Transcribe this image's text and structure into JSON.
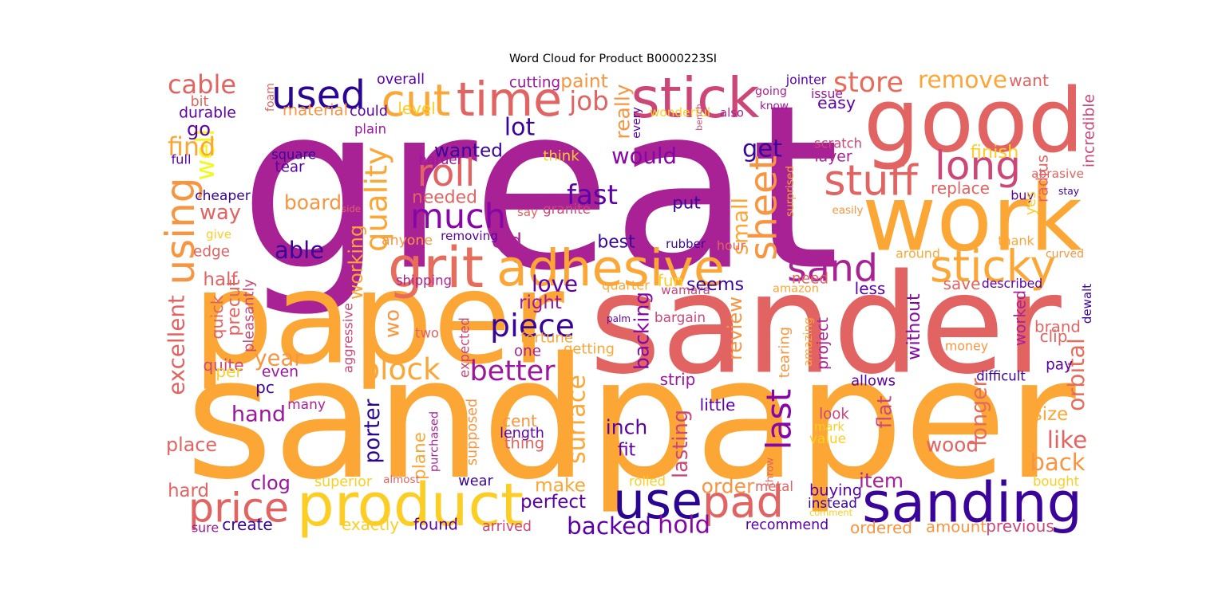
{
  "chart_data": {
    "type": "wordcloud",
    "title": "Word Cloud for Product B0000223SI",
    "colormap": "plasma",
    "words": [
      {
        "text": "great",
        "color": "#a82296"
      },
      {
        "text": "sandpaper",
        "color": "#fca636"
      },
      {
        "text": "sander",
        "color": "#e16462"
      },
      {
        "text": "paper",
        "color": "#fca636"
      },
      {
        "text": "good",
        "color": "#e16462"
      },
      {
        "text": "work",
        "color": "#fca636"
      },
      {
        "text": "sanding",
        "color": "#3a049a"
      },
      {
        "text": "product",
        "color": "#fcce25"
      },
      {
        "text": "use",
        "color": "#2a0593"
      },
      {
        "text": "adhesive",
        "color": "#fca636"
      },
      {
        "text": "time",
        "color": "#e16462"
      },
      {
        "text": "stick",
        "color": "#cc4778"
      },
      {
        "text": "grit",
        "color": "#e66c5c"
      },
      {
        "text": "much",
        "color": "#8606a6"
      },
      {
        "text": "used",
        "color": "#2a0593"
      },
      {
        "text": "roll",
        "color": "#e16462"
      },
      {
        "text": "cut",
        "color": "#fca636"
      },
      {
        "text": "well",
        "color": "#f0f921"
      },
      {
        "text": "price",
        "color": "#e16462"
      },
      {
        "text": "pad",
        "color": "#e16462"
      },
      {
        "text": "sticky",
        "color": "#fca636"
      },
      {
        "text": "sand",
        "color": "#a82296"
      },
      {
        "text": "long",
        "color": "#cc4778"
      },
      {
        "text": "stuff",
        "color": "#e16462"
      },
      {
        "text": "sheet",
        "color": "#f89540"
      },
      {
        "text": "using",
        "color": "#f89540"
      },
      {
        "text": "last",
        "color": "#8606a6"
      },
      {
        "text": "piece",
        "color": "#3a049a"
      },
      {
        "text": "remove",
        "color": "#fca636"
      },
      {
        "text": "store",
        "color": "#e66c5c"
      },
      {
        "text": "quality",
        "color": "#fca636"
      },
      {
        "text": "cable",
        "color": "#e16462"
      },
      {
        "text": "would",
        "color": "#8606a6"
      },
      {
        "text": "fast",
        "color": "#5c01a6"
      },
      {
        "text": "able",
        "color": "#3a049a"
      },
      {
        "text": "board",
        "color": "#f89540"
      },
      {
        "text": "block",
        "color": "#fca636"
      },
      {
        "text": "backed",
        "color": "#5c01a6"
      },
      {
        "text": "year",
        "color": "#f89540"
      },
      {
        "text": "one",
        "color": "#a82296"
      },
      {
        "text": "better",
        "color": "#9c179e"
      },
      {
        "text": "need",
        "color": "#e16462"
      },
      {
        "text": "get",
        "color": "#3a049a"
      },
      {
        "text": "small",
        "color": "#fca636"
      },
      {
        "text": "buy",
        "color": "#5c01a6"
      },
      {
        "text": "worked",
        "color": "#a82296"
      },
      {
        "text": "like",
        "color": "#e16462"
      },
      {
        "text": "back",
        "color": "#f89540"
      },
      {
        "text": "longer",
        "color": "#e66c5c"
      },
      {
        "text": "orbital",
        "color": "#e66c5c"
      },
      {
        "text": "without",
        "color": "#8606a6"
      },
      {
        "text": "excellent",
        "color": "#e16462"
      },
      {
        "text": "surface",
        "color": "#fca636"
      },
      {
        "text": "review",
        "color": "#f89540"
      },
      {
        "text": "backing",
        "color": "#8606a6"
      },
      {
        "text": "porter",
        "color": "#2a0593"
      },
      {
        "text": "wood",
        "color": "#e16462"
      },
      {
        "text": "hold",
        "color": "#8606a6"
      },
      {
        "text": "make",
        "color": "#fca636"
      },
      {
        "text": "recommend",
        "color": "#5c01a6"
      },
      {
        "text": "easy",
        "color": "#5c01a6"
      },
      {
        "text": "job",
        "color": "#e16462"
      },
      {
        "text": "lot",
        "color": "#3a049a"
      },
      {
        "text": "way",
        "color": "#e16462"
      },
      {
        "text": "find",
        "color": "#fca636"
      },
      {
        "text": "go",
        "color": "#5c01a6"
      },
      {
        "text": "love",
        "color": "#5c01a6"
      },
      {
        "text": "seems",
        "color": "#3a049a"
      },
      {
        "text": "best",
        "color": "#3a049a"
      },
      {
        "text": "really",
        "color": "#f89540"
      },
      {
        "text": "wanted",
        "color": "#3a049a"
      },
      {
        "text": "needed",
        "color": "#e16462"
      },
      {
        "text": "supposed",
        "color": "#f89540"
      },
      {
        "text": "expected",
        "color": "#cc4778"
      },
      {
        "text": "hand",
        "color": "#9c179e"
      },
      {
        "text": "many",
        "color": "#a82296"
      },
      {
        "text": "place",
        "color": "#e16462"
      },
      {
        "text": "hard",
        "color": "#e16462"
      },
      {
        "text": "clog",
        "color": "#9c179e"
      },
      {
        "text": "plane",
        "color": "#fca636"
      },
      {
        "text": "inch",
        "color": "#5c01a6"
      },
      {
        "text": "perfect",
        "color": "#5c01a6"
      },
      {
        "text": "arrived",
        "color": "#cc4778"
      },
      {
        "text": "order",
        "color": "#f89540"
      },
      {
        "text": "item",
        "color": "#a82296"
      },
      {
        "text": "money",
        "color": "#f89540"
      },
      {
        "text": "brand",
        "color": "#e16462"
      },
      {
        "text": "size",
        "color": "#fca636"
      },
      {
        "text": "bought",
        "color": "#fcce25"
      },
      {
        "text": "tearing",
        "color": "#f89540"
      },
      {
        "text": "project",
        "color": "#a82296"
      },
      {
        "text": "lasting",
        "color": "#cc4778"
      },
      {
        "text": "fit",
        "color": "#5c01a6"
      },
      {
        "text": "even",
        "color": "#9c179e"
      },
      {
        "text": "half",
        "color": "#e16462"
      },
      {
        "text": "wo",
        "color": "#f89540"
      },
      {
        "text": "flat",
        "color": "#cc4778"
      },
      {
        "text": "also",
        "color": "#a82296"
      },
      {
        "text": "could",
        "color": "#5c01a6"
      },
      {
        "text": "paint",
        "color": "#f89540"
      },
      {
        "text": "cutting",
        "color": "#9c179e"
      },
      {
        "text": "overall",
        "color": "#5c01a6"
      },
      {
        "text": "foam",
        "color": "#e16462"
      },
      {
        "text": "material",
        "color": "#f89540"
      },
      {
        "text": "level",
        "color": "#fcce25"
      },
      {
        "text": "plain",
        "color": "#9c179e"
      },
      {
        "text": "wonderful",
        "color": "#fcce25"
      },
      {
        "text": "bench",
        "color": "#cc4778"
      },
      {
        "text": "every",
        "color": "#5c01a6"
      },
      {
        "text": "going",
        "color": "#a82296"
      },
      {
        "text": "know",
        "color": "#9c179e"
      },
      {
        "text": "jointer",
        "color": "#5c01a6"
      },
      {
        "text": "issue",
        "color": "#9c179e"
      },
      {
        "text": "want",
        "color": "#e16462"
      },
      {
        "text": "radius",
        "color": "#e16462"
      },
      {
        "text": "incredible",
        "color": "#cc4778"
      },
      {
        "text": "bit",
        "color": "#e16462"
      },
      {
        "text": "durable",
        "color": "#5c01a6"
      },
      {
        "text": "full",
        "color": "#5c01a6"
      },
      {
        "text": "square",
        "color": "#3a049a"
      },
      {
        "text": "tear",
        "color": "#5c01a6"
      },
      {
        "text": "cheaper",
        "color": "#3a049a"
      },
      {
        "text": "give",
        "color": "#fcce25"
      },
      {
        "text": "edge",
        "color": "#e16462"
      },
      {
        "text": "side",
        "color": "#e16462"
      },
      {
        "text": "granite",
        "color": "#cc4778"
      },
      {
        "text": "say",
        "color": "#e16462"
      },
      {
        "text": "harder",
        "color": "#9c179e"
      },
      {
        "text": "think",
        "color": "#fcce25"
      },
      {
        "text": "scratch",
        "color": "#cc4778"
      },
      {
        "text": "layer",
        "color": "#a82296"
      },
      {
        "text": "surprised",
        "color": "#fca636"
      },
      {
        "text": "finish",
        "color": "#fcce25"
      },
      {
        "text": "replace",
        "color": "#e16462"
      },
      {
        "text": "abrasive",
        "color": "#e16462"
      },
      {
        "text": "stay",
        "color": "#3a049a"
      },
      {
        "text": "easily",
        "color": "#f89540"
      },
      {
        "text": "yes",
        "color": "#fcce25"
      },
      {
        "text": "thank",
        "color": "#fca636"
      },
      {
        "text": "curved",
        "color": "#f89540"
      },
      {
        "text": "around",
        "color": "#fca636"
      },
      {
        "text": "hour",
        "color": "#e16462"
      },
      {
        "text": "put",
        "color": "#3a049a"
      },
      {
        "text": "rubber",
        "color": "#3a049a"
      },
      {
        "text": "old",
        "color": "#a82296"
      },
      {
        "text": "removing",
        "color": "#5c01a6"
      },
      {
        "text": "anyone",
        "color": "#f89540"
      },
      {
        "text": "working",
        "color": "#fca636"
      },
      {
        "text": "shipping",
        "color": "#a82296"
      },
      {
        "text": "quarter",
        "color": "#fca636"
      },
      {
        "text": "fun",
        "color": "#fcce25"
      },
      {
        "text": "wamara",
        "color": "#cc4778"
      },
      {
        "text": "amazon",
        "color": "#fca636"
      },
      {
        "text": "save",
        "color": "#e16462"
      },
      {
        "text": "described",
        "color": "#5c01a6"
      },
      {
        "text": "less",
        "color": "#5c01a6"
      },
      {
        "text": "dewalt",
        "color": "#3a049a"
      },
      {
        "text": "right",
        "color": "#9c179e"
      },
      {
        "text": "palm",
        "color": "#5c01a6"
      },
      {
        "text": "bargain",
        "color": "#cc4778"
      },
      {
        "text": "fortune",
        "color": "#fca636"
      },
      {
        "text": "getting",
        "color": "#fca636"
      },
      {
        "text": "amazing",
        "color": "#fca636"
      },
      {
        "text": "clip",
        "color": "#e16462"
      },
      {
        "text": "pay",
        "color": "#5c01a6"
      },
      {
        "text": "difficult",
        "color": "#3a049a"
      },
      {
        "text": "allows",
        "color": "#5c01a6"
      },
      {
        "text": "strip",
        "color": "#9c179e"
      },
      {
        "text": "two",
        "color": "#e16462"
      },
      {
        "text": "precut",
        "color": "#e16462"
      },
      {
        "text": "pleasantly",
        "color": "#cc4778"
      },
      {
        "text": "quick",
        "color": "#e16462"
      },
      {
        "text": "aggressive",
        "color": "#cc4778"
      },
      {
        "text": "quite",
        "color": "#cc4778"
      },
      {
        "text": "per",
        "color": "#fcce25"
      },
      {
        "text": "pc",
        "color": "#3a049a"
      },
      {
        "text": "little",
        "color": "#5c01a6"
      },
      {
        "text": "cent",
        "color": "#f89540"
      },
      {
        "text": "length",
        "color": "#5c01a6"
      },
      {
        "text": "thing",
        "color": "#e16462"
      },
      {
        "text": "purchased",
        "color": "#a82296"
      },
      {
        "text": "look",
        "color": "#cc4778"
      },
      {
        "text": "mark",
        "color": "#fcce25"
      },
      {
        "text": "value",
        "color": "#fcce25"
      },
      {
        "text": "throw",
        "color": "#e16462"
      },
      {
        "text": "superior",
        "color": "#fcce25"
      },
      {
        "text": "almost",
        "color": "#e16462"
      },
      {
        "text": "wear",
        "color": "#3a049a"
      },
      {
        "text": "rolled",
        "color": "#fcce25"
      },
      {
        "text": "metal",
        "color": "#e16462"
      },
      {
        "text": "buying",
        "color": "#5c01a6"
      },
      {
        "text": "instead",
        "color": "#3a049a"
      },
      {
        "text": "comment",
        "color": "#fcce25"
      },
      {
        "text": "exactly",
        "color": "#fcce25"
      },
      {
        "text": "found",
        "color": "#5c01a6"
      },
      {
        "text": "ordered",
        "color": "#f89540"
      },
      {
        "text": "amount",
        "color": "#f89540"
      },
      {
        "text": "previous",
        "color": "#cc4778"
      },
      {
        "text": "create",
        "color": "#3a049a"
      },
      {
        "text": "sure",
        "color": "#9c179e"
      }
    ]
  }
}
